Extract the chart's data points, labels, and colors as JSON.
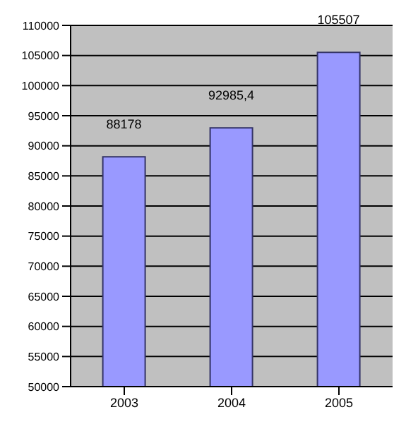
{
  "chart_data": {
    "type": "bar",
    "categories": [
      "2003",
      "2004",
      "2005"
    ],
    "values": [
      88178,
      92985.4,
      105507
    ],
    "value_labels": [
      "88178",
      "92985,4",
      "105507"
    ],
    "color": "#9999ff",
    "ylim": [
      50000,
      110000
    ],
    "yticks": [
      50000,
      55000,
      60000,
      65000,
      70000,
      75000,
      80000,
      85000,
      90000,
      95000,
      100000,
      105000,
      110000
    ],
    "grid": "y"
  }
}
